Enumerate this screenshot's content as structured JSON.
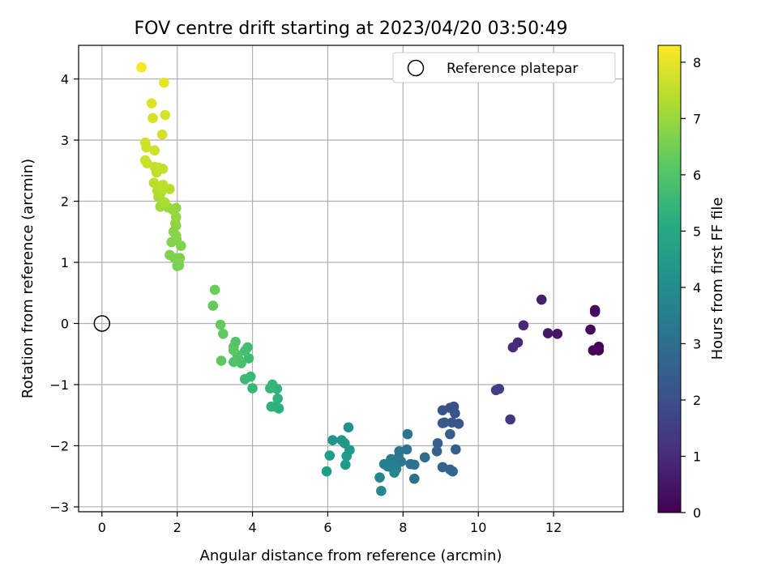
{
  "chart_data": {
    "type": "scatter",
    "title": "FOV centre drift starting at 2023/04/20 03:50:49",
    "xlabel": "Angular distance from reference (arcmin)",
    "ylabel": "Rotation from reference (arcmin)",
    "xlim": [
      -0.62,
      13.85
    ],
    "ylim": [
      -3.08,
      4.55
    ],
    "xticks": [
      0,
      2,
      4,
      6,
      8,
      10,
      12
    ],
    "xtick_labels": [
      "0",
      "2",
      "4",
      "6",
      "8",
      "10",
      "12"
    ],
    "yticks": [
      -3,
      -2,
      -1,
      0,
      1,
      2,
      3,
      4
    ],
    "ytick_labels": [
      "−3",
      "−2",
      "−1",
      "0",
      "1",
      "2",
      "3",
      "4"
    ],
    "grid": true,
    "legend": {
      "position": "top-right",
      "entries": [
        "Reference platepar"
      ]
    },
    "reference_point": {
      "x": 0,
      "y": 0,
      "marker": "open-circle"
    },
    "colorbar": {
      "label": "Hours from first FF file",
      "range": [
        0,
        8.3
      ],
      "ticks": [
        0,
        1,
        2,
        3,
        4,
        5,
        6,
        7,
        8
      ],
      "tick_labels": [
        "0",
        "1",
        "2",
        "3",
        "4",
        "5",
        "6",
        "7",
        "8"
      ],
      "colormap": "viridis"
    },
    "points": [
      {
        "x": 13.2,
        "y": -0.38,
        "c": 0.05
      },
      {
        "x": 13.2,
        "y": -0.44,
        "c": 0.08
      },
      {
        "x": 13.05,
        "y": -0.44,
        "c": 0.12
      },
      {
        "x": 12.98,
        "y": -0.1,
        "c": 0.15
      },
      {
        "x": 13.1,
        "y": 0.19,
        "c": 0.2
      },
      {
        "x": 13.1,
        "y": 0.22,
        "c": 0.25
      },
      {
        "x": 12.1,
        "y": -0.17,
        "c": 0.45
      },
      {
        "x": 11.85,
        "y": -0.16,
        "c": 0.5
      },
      {
        "x": 11.68,
        "y": 0.39,
        "c": 0.7
      },
      {
        "x": 11.2,
        "y": -0.03,
        "c": 0.9
      },
      {
        "x": 11.05,
        "y": -0.31,
        "c": 1.0
      },
      {
        "x": 10.92,
        "y": -0.39,
        "c": 1.05
      },
      {
        "x": 10.85,
        "y": -1.57,
        "c": 1.3
      },
      {
        "x": 10.55,
        "y": -1.07,
        "c": 1.5
      },
      {
        "x": 10.47,
        "y": -1.09,
        "c": 1.55
      },
      {
        "x": 9.35,
        "y": -1.36,
        "c": 2.0
      },
      {
        "x": 9.25,
        "y": -1.38,
        "c": 2.05
      },
      {
        "x": 9.05,
        "y": -1.42,
        "c": 2.1
      },
      {
        "x": 9.38,
        "y": -1.47,
        "c": 2.15
      },
      {
        "x": 9.48,
        "y": -1.64,
        "c": 2.2
      },
      {
        "x": 9.3,
        "y": -1.62,
        "c": 2.25
      },
      {
        "x": 9.1,
        "y": -1.62,
        "c": 2.3
      },
      {
        "x": 9.05,
        "y": -1.63,
        "c": 2.35
      },
      {
        "x": 9.25,
        "y": -1.81,
        "c": 2.4
      },
      {
        "x": 9.4,
        "y": -2.06,
        "c": 2.45
      },
      {
        "x": 8.92,
        "y": -1.96,
        "c": 2.5
      },
      {
        "x": 8.9,
        "y": -2.09,
        "c": 2.55
      },
      {
        "x": 9.05,
        "y": -2.35,
        "c": 2.6
      },
      {
        "x": 9.25,
        "y": -2.39,
        "c": 2.65
      },
      {
        "x": 9.32,
        "y": -2.42,
        "c": 2.7
      },
      {
        "x": 8.58,
        "y": -2.19,
        "c": 2.9
      },
      {
        "x": 8.3,
        "y": -2.54,
        "c": 3.0
      },
      {
        "x": 8.2,
        "y": -2.3,
        "c": 3.1
      },
      {
        "x": 8.3,
        "y": -2.31,
        "c": 3.15
      },
      {
        "x": 8.12,
        "y": -1.81,
        "c": 3.2
      },
      {
        "x": 8.1,
        "y": -2.06,
        "c": 3.25
      },
      {
        "x": 7.9,
        "y": -2.09,
        "c": 3.3
      },
      {
        "x": 7.88,
        "y": -2.19,
        "c": 3.35
      },
      {
        "x": 7.95,
        "y": -2.26,
        "c": 3.4
      },
      {
        "x": 7.75,
        "y": -2.25,
        "c": 3.45
      },
      {
        "x": 7.68,
        "y": -2.22,
        "c": 3.5
      },
      {
        "x": 7.7,
        "y": -2.3,
        "c": 3.55
      },
      {
        "x": 7.6,
        "y": -2.34,
        "c": 3.6
      },
      {
        "x": 7.5,
        "y": -2.3,
        "c": 3.65
      },
      {
        "x": 7.82,
        "y": -2.38,
        "c": 3.7
      },
      {
        "x": 7.77,
        "y": -2.44,
        "c": 3.75
      },
      {
        "x": 7.38,
        "y": -2.52,
        "c": 3.85
      },
      {
        "x": 7.42,
        "y": -2.74,
        "c": 3.9
      },
      {
        "x": 6.55,
        "y": -1.7,
        "c": 4.2
      },
      {
        "x": 6.13,
        "y": -1.91,
        "c": 4.3
      },
      {
        "x": 6.37,
        "y": -1.91,
        "c": 4.35
      },
      {
        "x": 6.45,
        "y": -1.96,
        "c": 4.4
      },
      {
        "x": 6.58,
        "y": -2.07,
        "c": 4.45
      },
      {
        "x": 6.5,
        "y": -2.17,
        "c": 4.5
      },
      {
        "x": 6.47,
        "y": -2.31,
        "c": 4.55
      },
      {
        "x": 6.05,
        "y": -2.16,
        "c": 4.6
      },
      {
        "x": 5.97,
        "y": -2.42,
        "c": 4.65
      },
      {
        "x": 4.7,
        "y": -1.39,
        "c": 5.2
      },
      {
        "x": 4.6,
        "y": -1.36,
        "c": 5.25
      },
      {
        "x": 4.5,
        "y": -1.36,
        "c": 5.3
      },
      {
        "x": 4.67,
        "y": -1.23,
        "c": 5.35
      },
      {
        "x": 4.65,
        "y": -1.07,
        "c": 5.4
      },
      {
        "x": 4.53,
        "y": -1.0,
        "c": 5.45
      },
      {
        "x": 4.47,
        "y": -1.06,
        "c": 5.5
      },
      {
        "x": 4.0,
        "y": -1.06,
        "c": 5.55
      },
      {
        "x": 3.95,
        "y": -0.87,
        "c": 5.6
      },
      {
        "x": 3.8,
        "y": -0.91,
        "c": 5.65
      },
      {
        "x": 3.9,
        "y": -0.57,
        "c": 5.7
      },
      {
        "x": 3.87,
        "y": -0.39,
        "c": 5.75
      },
      {
        "x": 3.8,
        "y": -0.45,
        "c": 5.8
      },
      {
        "x": 3.7,
        "y": -0.65,
        "c": 5.85
      },
      {
        "x": 3.65,
        "y": -0.6,
        "c": 5.9
      },
      {
        "x": 3.6,
        "y": -0.52,
        "c": 5.95
      },
      {
        "x": 3.5,
        "y": -0.63,
        "c": 6.0
      },
      {
        "x": 3.55,
        "y": -0.3,
        "c": 6.05
      },
      {
        "x": 3.5,
        "y": -0.38,
        "c": 6.1
      },
      {
        "x": 3.5,
        "y": -0.44,
        "c": 6.15
      },
      {
        "x": 3.17,
        "y": -0.61,
        "c": 6.2
      },
      {
        "x": 3.22,
        "y": -0.17,
        "c": 6.25
      },
      {
        "x": 3.15,
        "y": -0.02,
        "c": 6.3
      },
      {
        "x": 2.95,
        "y": 0.29,
        "c": 6.35
      },
      {
        "x": 3.0,
        "y": 0.55,
        "c": 6.4
      },
      {
        "x": 2.05,
        "y": 0.95,
        "c": 6.6
      },
      {
        "x": 2.0,
        "y": 0.94,
        "c": 6.62
      },
      {
        "x": 1.93,
        "y": 1.07,
        "c": 6.65
      },
      {
        "x": 1.8,
        "y": 1.12,
        "c": 6.67
      },
      {
        "x": 2.07,
        "y": 1.07,
        "c": 6.7
      },
      {
        "x": 2.1,
        "y": 1.27,
        "c": 6.72
      },
      {
        "x": 1.85,
        "y": 1.33,
        "c": 6.75
      },
      {
        "x": 1.98,
        "y": 1.38,
        "c": 6.77
      },
      {
        "x": 1.97,
        "y": 1.44,
        "c": 6.8
      },
      {
        "x": 1.9,
        "y": 1.5,
        "c": 6.83
      },
      {
        "x": 1.97,
        "y": 1.6,
        "c": 6.86
      },
      {
        "x": 1.95,
        "y": 1.64,
        "c": 6.9
      },
      {
        "x": 1.97,
        "y": 1.74,
        "c": 6.93
      },
      {
        "x": 1.97,
        "y": 1.89,
        "c": 6.96
      },
      {
        "x": 1.88,
        "y": 1.86,
        "c": 7.0
      },
      {
        "x": 1.75,
        "y": 1.9,
        "c": 7.05
      },
      {
        "x": 1.55,
        "y": 1.91,
        "c": 7.1
      },
      {
        "x": 1.6,
        "y": 2.0,
        "c": 7.15
      },
      {
        "x": 1.5,
        "y": 2.07,
        "c": 7.2
      },
      {
        "x": 1.67,
        "y": 1.98,
        "c": 7.25
      },
      {
        "x": 1.57,
        "y": 2.14,
        "c": 7.3
      },
      {
        "x": 1.47,
        "y": 2.17,
        "c": 7.35
      },
      {
        "x": 1.6,
        "y": 2.2,
        "c": 7.4
      },
      {
        "x": 1.8,
        "y": 2.2,
        "c": 7.42
      },
      {
        "x": 1.38,
        "y": 2.3,
        "c": 7.45
      },
      {
        "x": 1.62,
        "y": 2.27,
        "c": 7.5
      },
      {
        "x": 1.45,
        "y": 2.47,
        "c": 7.52
      },
      {
        "x": 1.4,
        "y": 2.56,
        "c": 7.55
      },
      {
        "x": 1.5,
        "y": 2.55,
        "c": 7.57
      },
      {
        "x": 1.62,
        "y": 2.53,
        "c": 7.6
      },
      {
        "x": 1.2,
        "y": 2.62,
        "c": 7.62
      },
      {
        "x": 1.15,
        "y": 2.67,
        "c": 7.65
      },
      {
        "x": 1.4,
        "y": 2.83,
        "c": 7.67
      },
      {
        "x": 1.18,
        "y": 2.88,
        "c": 7.7
      },
      {
        "x": 1.15,
        "y": 2.96,
        "c": 7.72
      },
      {
        "x": 1.6,
        "y": 3.09,
        "c": 7.75
      },
      {
        "x": 1.35,
        "y": 3.36,
        "c": 7.8
      },
      {
        "x": 1.68,
        "y": 3.41,
        "c": 7.83
      },
      {
        "x": 1.32,
        "y": 3.6,
        "c": 7.87
      },
      {
        "x": 1.65,
        "y": 3.94,
        "c": 8.0
      },
      {
        "x": 1.05,
        "y": 4.19,
        "c": 8.2
      }
    ]
  }
}
